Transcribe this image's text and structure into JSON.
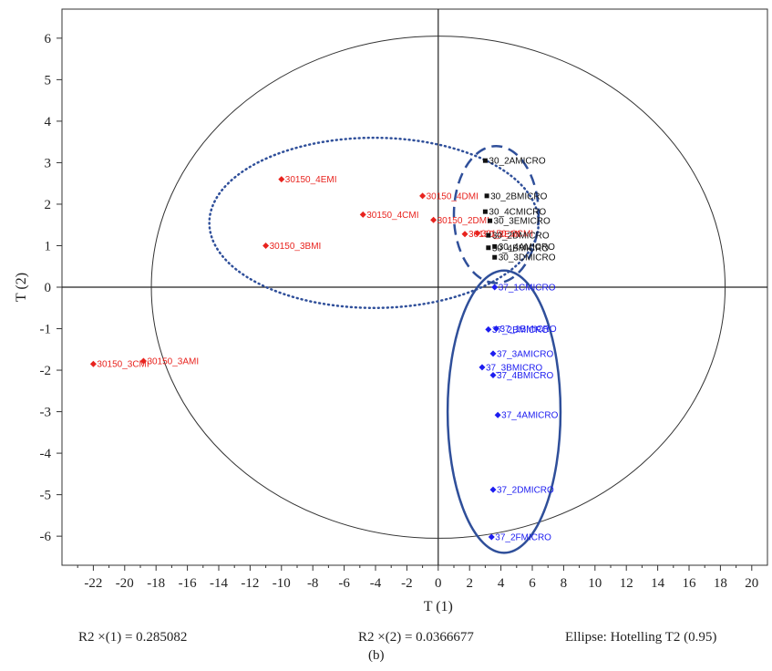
{
  "chart_data": {
    "type": "scatter",
    "title": "",
    "xlabel": "T (1)",
    "ylabel": "T (2)",
    "xlim": [
      -24,
      21
    ],
    "ylim": [
      -6.7,
      6.7
    ],
    "x_ticks": [
      -22,
      -20,
      -18,
      -16,
      -14,
      -12,
      -10,
      -8,
      -6,
      -4,
      -2,
      0,
      2,
      4,
      6,
      8,
      10,
      12,
      14,
      16,
      18,
      20
    ],
    "y_ticks": [
      -6,
      -5,
      -4,
      -3,
      -2,
      -1,
      0,
      1,
      2,
      3,
      4,
      5,
      6
    ],
    "grid": false,
    "series": [
      {
        "color": "#e8231e",
        "marker": "diamond",
        "points": [
          {
            "label": "30150_4EMI",
            "x": -10.0,
            "y": 2.6
          },
          {
            "label": "30150_4DMI",
            "x": -1.0,
            "y": 2.2
          },
          {
            "label": "30150_4CMI",
            "x": -4.8,
            "y": 1.75
          },
          {
            "label": "30150_2DMI",
            "x": -0.3,
            "y": 1.62
          },
          {
            "label": "30150_3BMI",
            "x": -11.0,
            "y": 1.0
          },
          {
            "label": "30150_2EMI",
            "x": 1.7,
            "y": 1.28
          },
          {
            "label": "30150_2CMI",
            "x": 2.5,
            "y": 1.3
          },
          {
            "label": "30150_3CMI",
            "x": -22.0,
            "y": -1.85
          },
          {
            "label": "30150_3AMI",
            "x": -18.8,
            "y": -1.78
          }
        ]
      },
      {
        "color": "#111111",
        "marker": "square",
        "points": [
          {
            "label": "30_2AMICRO",
            "x": 3.0,
            "y": 3.05
          },
          {
            "label": "30_2BMICRO",
            "x": 3.1,
            "y": 2.2
          },
          {
            "label": "30_4CMICRO",
            "x": 3.0,
            "y": 1.82
          },
          {
            "label": "30_3EMICRO",
            "x": 3.3,
            "y": 1.6
          },
          {
            "label": "30_2DMICRO",
            "x": 3.2,
            "y": 1.25
          },
          {
            "label": "30_4AMICRO",
            "x": 3.6,
            "y": 0.98
          },
          {
            "label": "30_4BMICRO",
            "x": 3.2,
            "y": 0.95
          },
          {
            "label": "30_3DMICRO",
            "x": 3.6,
            "y": 0.72
          }
        ]
      },
      {
        "color": "#1c1cf0",
        "marker": "diamond",
        "points": [
          {
            "label": "37_1CMICRO",
            "x": 3.6,
            "y": 0.0
          },
          {
            "label": "37_2BMICRO",
            "x": 3.2,
            "y": -1.02
          },
          {
            "label": "37_1BMICRO",
            "x": 3.7,
            "y": -1.0
          },
          {
            "label": "37_3AMICRO",
            "x": 3.5,
            "y": -1.6
          },
          {
            "label": "37_3BMICRO",
            "x": 2.8,
            "y": -1.93
          },
          {
            "label": "37_4BMICRO",
            "x": 3.5,
            "y": -2.12
          },
          {
            "label": "37_4AMICRO",
            "x": 3.8,
            "y": -3.08
          },
          {
            "label": "37_2DMICRO",
            "x": 3.5,
            "y": -4.88
          },
          {
            "label": "37_2FMICRO",
            "x": 3.4,
            "y": -6.02
          }
        ]
      }
    ],
    "ellipses": [
      {
        "name": "Hotelling T2 (0.95)",
        "cx": 0,
        "cy": 0,
        "rx": 18.3,
        "ry": 6.05,
        "color": "#333333",
        "style": "solid",
        "width": 1
      },
      {
        "name": "cluster-30150",
        "cx": -4.1,
        "cy": 1.55,
        "rx": 10.5,
        "ry": 2.05,
        "color": "#2f4f9a",
        "style": "dotted",
        "width": 2.5
      },
      {
        "name": "cluster-30",
        "cx": 3.7,
        "cy": 1.75,
        "rx": 2.7,
        "ry": 1.65,
        "color": "#2f4f9a",
        "style": "dashed",
        "width": 2.5
      },
      {
        "name": "cluster-37",
        "cx": 4.2,
        "cy": -3.0,
        "rx": 3.6,
        "ry": 3.4,
        "color": "#2f4f9a",
        "style": "solid",
        "width": 2.5
      }
    ]
  },
  "footer": {
    "r2x1": "R2 ×(1) = 0.285082",
    "r2x2": "R2 ×(2) = 0.0366677",
    "ellipse": "Ellipse: Hotelling T2 (0.95)",
    "caption": "(b)"
  }
}
